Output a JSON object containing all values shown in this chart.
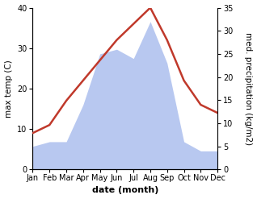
{
  "months": [
    "Jan",
    "Feb",
    "Mar",
    "Apr",
    "May",
    "Jun",
    "Jul",
    "Aug",
    "Sep",
    "Oct",
    "Nov",
    "Dec"
  ],
  "temperature": [
    9,
    11,
    17,
    22,
    27,
    32,
    36,
    40,
    32,
    22,
    16,
    14
  ],
  "precipitation": [
    5,
    6,
    6,
    14,
    25,
    26,
    24,
    32,
    23,
    6,
    4,
    4
  ],
  "temp_color": "#c0392b",
  "precip_color_fill": "#b8c8f0",
  "background_color": "#ffffff",
  "xlabel": "date (month)",
  "ylabel_left": "max temp (C)",
  "ylabel_right": "med. precipitation (kg/m2)",
  "ylim_left": [
    0,
    40
  ],
  "ylim_right": [
    0,
    35
  ],
  "yticks_left": [
    0,
    10,
    20,
    30,
    40
  ],
  "yticks_right": [
    0,
    5,
    10,
    15,
    20,
    25,
    30,
    35
  ],
  "temp_linewidth": 1.8,
  "xlabel_fontsize": 8,
  "ylabel_fontsize": 7.5,
  "tick_fontsize": 7
}
